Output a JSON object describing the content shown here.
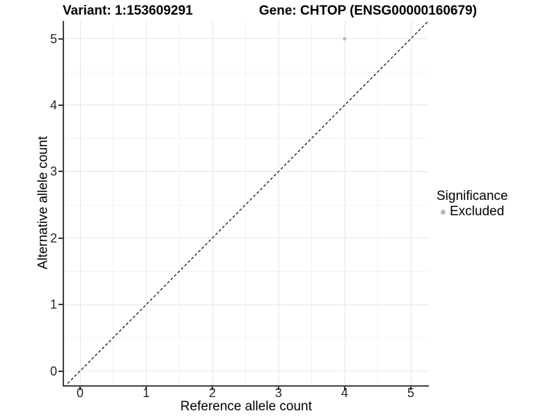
{
  "chart_data": {
    "type": "scatter",
    "title_left": "Variant: 1:153609291",
    "title_right": "Gene: CHTOP (ENSG00000160679)",
    "xlabel": "Reference allele count",
    "ylabel": "Alternative allele count",
    "x_ticks": [
      0,
      1,
      2,
      3,
      4,
      5
    ],
    "y_ticks": [
      0,
      1,
      2,
      3,
      4,
      5
    ],
    "xlim": [
      -0.25,
      5.25
    ],
    "ylim": [
      -0.25,
      5.25
    ],
    "grid": "major+minor",
    "reference_line": {
      "slope": 1,
      "intercept": 0,
      "style": "dashed",
      "color": "#111111"
    },
    "series": [
      {
        "name": "Excluded",
        "color": "#b9b9b9",
        "points": [
          {
            "x": 4,
            "y": 5
          }
        ]
      }
    ],
    "legend": {
      "title": "Significance",
      "position": "right",
      "items": [
        {
          "label": "Excluded",
          "color": "#b9b9b9"
        }
      ]
    }
  },
  "colors": {
    "grid_major": "#e6e6e6",
    "grid_minor": "#f2f2f2",
    "axis_line": "#3f3f3f",
    "background": "#ffffff"
  }
}
